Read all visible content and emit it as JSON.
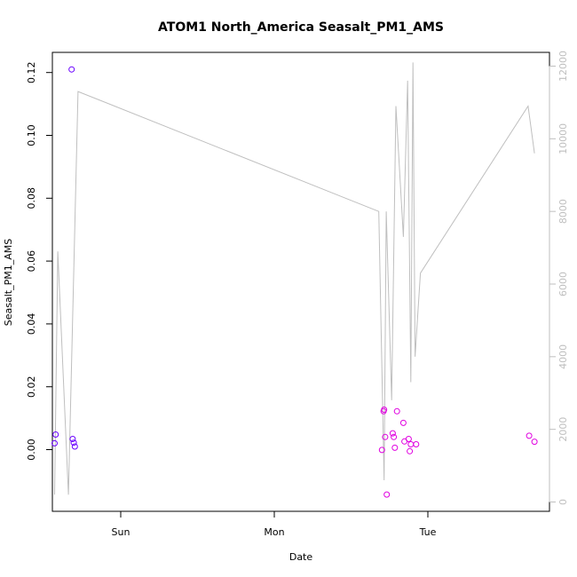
{
  "chart_data": {
    "type": "scatter",
    "title": "ATOM1 North_America Seasalt_PM1_AMS",
    "xlabel": "Date",
    "ylabel": "Seasalt_PM1_AMS",
    "x_ticks": [
      "Sun",
      "Mon",
      "Tue"
    ],
    "y_ticks": [
      "0.00",
      "0.02",
      "0.04",
      "0.06",
      "0.08",
      "0.10",
      "0.12"
    ],
    "y2_ticks": [
      "0",
      "2000",
      "4000",
      "6000",
      "8000",
      "10000",
      "12000"
    ],
    "ylim": [
      -0.0185,
      0.1265
    ],
    "y2lim": [
      -200,
      12640
    ],
    "colors": {
      "axis": "#000000",
      "altitude_line": "#bfbfbf",
      "points_early": "#6a00ff",
      "points_late": "#e000e0"
    },
    "series": [
      {
        "kind": "points",
        "points": [
          {
            "x": "Sat 13:40",
            "y": 0.002
          },
          {
            "x": "Sat 13:50",
            "y": 0.0048
          },
          {
            "x": "Sat 16:20",
            "y": 0.121
          },
          {
            "x": "Sat 16:30",
            "y": 0.0034
          },
          {
            "x": "Sat 16:40",
            "y": 0.0022
          },
          {
            "x": "Sat 16:50",
            "y": 0.001
          },
          {
            "x": "Mon 16:50",
            "y": -0.0001
          },
          {
            "x": "Mon 17:05",
            "y": 0.0122
          },
          {
            "x": "Mon 17:10",
            "y": 0.0127
          },
          {
            "x": "Mon 17:20",
            "y": 0.004
          },
          {
            "x": "Mon 17:35",
            "y": -0.0143
          },
          {
            "x": "Mon 18:30",
            "y": 0.0052
          },
          {
            "x": "Mon 18:40",
            "y": 0.004
          },
          {
            "x": "Mon 18:50",
            "y": 0.0006
          },
          {
            "x": "Mon 19:10",
            "y": 0.0122
          },
          {
            "x": "Mon 20:10",
            "y": 0.0085
          },
          {
            "x": "Mon 20:20",
            "y": 0.0026
          },
          {
            "x": "Mon 21:00",
            "y": 0.0034
          },
          {
            "x": "Mon 21:10",
            "y": -0.0005
          },
          {
            "x": "Mon 21:20",
            "y": 0.0017
          },
          {
            "x": "Mon 22:10",
            "y": 0.0017
          },
          {
            "x": "Tue 15:50",
            "y": 0.0044
          },
          {
            "x": "Tue 16:40",
            "y": 0.0025
          }
        ]
      },
      {
        "kind": "line",
        "axis": "right",
        "points": [
          {
            "x": "Sat 13:40",
            "y": 200
          },
          {
            "x": "Sat 14:10",
            "y": 6900
          },
          {
            "x": "Sat 15:50",
            "y": 200
          },
          {
            "x": "Sat 17:20",
            "y": 11300
          },
          {
            "x": "Mon 16:20",
            "y": 8000
          },
          {
            "x": "Mon 17:10",
            "y": 600
          },
          {
            "x": "Mon 17:30",
            "y": 8000
          },
          {
            "x": "Mon 18:20",
            "y": 2800
          },
          {
            "x": "Mon 19:00",
            "y": 10900
          },
          {
            "x": "Mon 20:10",
            "y": 7300
          },
          {
            "x": "Mon 20:50",
            "y": 11600
          },
          {
            "x": "Mon 21:20",
            "y": 3300
          },
          {
            "x": "Mon 21:40",
            "y": 12100
          },
          {
            "x": "Mon 22:00",
            "y": 4000
          },
          {
            "x": "Mon 22:50",
            "y": 6300
          },
          {
            "x": "Tue 15:40",
            "y": 10900
          },
          {
            "x": "Tue 16:40",
            "y": 9600
          }
        ]
      }
    ]
  }
}
